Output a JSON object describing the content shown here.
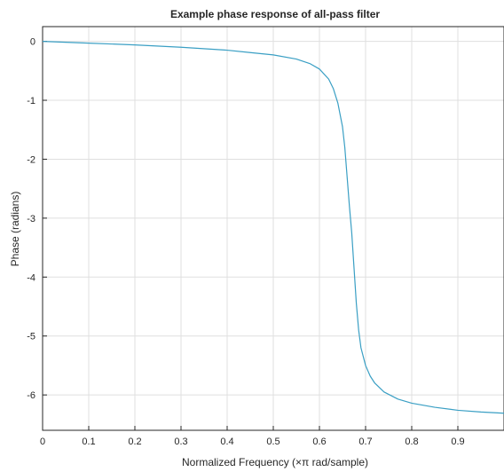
{
  "chart_data": {
    "type": "line",
    "title": "Example phase response of all-pass filter",
    "xlabel": "Normalized Frequency (×π rad/sample)",
    "ylabel": "Phase (radians)",
    "xlim": [
      0,
      1
    ],
    "ylim": [
      -6.6,
      0.25
    ],
    "xticks": [
      0,
      0.1,
      0.2,
      0.3,
      0.4,
      0.5,
      0.6,
      0.7,
      0.8,
      0.9
    ],
    "xtick_labels": [
      "0",
      "0.1",
      "0.2",
      "0.3",
      "0.4",
      "0.5",
      "0.6",
      "0.7",
      "0.8",
      "0.9"
    ],
    "yticks": [
      0,
      -1,
      -2,
      -3,
      -4,
      -5,
      -6
    ],
    "ytick_labels": [
      "0",
      "-1",
      "-2",
      "-3",
      "-4",
      "-5",
      "-6"
    ],
    "grid": true,
    "line_color": "#3a9fc4",
    "series": [
      {
        "x": [
          0,
          0.1,
          0.2,
          0.3,
          0.4,
          0.45,
          0.5,
          0.55,
          0.58,
          0.6,
          0.62,
          0.63,
          0.64,
          0.65,
          0.655,
          0.66,
          0.665,
          0.67,
          0.675,
          0.68,
          0.685,
          0.69,
          0.7,
          0.71,
          0.72,
          0.74,
          0.77,
          0.8,
          0.85,
          0.9,
          0.95,
          1.0
        ],
        "y": [
          0,
          -0.03,
          -0.06,
          -0.1,
          -0.15,
          -0.19,
          -0.23,
          -0.3,
          -0.38,
          -0.47,
          -0.64,
          -0.8,
          -1.05,
          -1.45,
          -1.8,
          -2.3,
          -2.8,
          -3.25,
          -3.85,
          -4.45,
          -4.9,
          -5.2,
          -5.5,
          -5.68,
          -5.8,
          -5.95,
          -6.07,
          -6.14,
          -6.21,
          -6.26,
          -6.29,
          -6.31
        ]
      }
    ]
  }
}
